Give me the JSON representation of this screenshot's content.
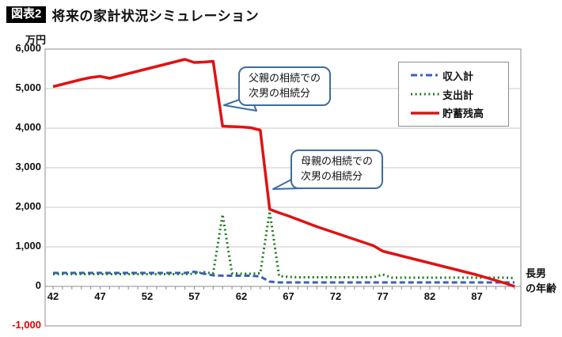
{
  "header": {
    "badge": "図表2",
    "title": "将来の家計状況シミュレーション"
  },
  "axes": {
    "y_unit": "万円",
    "x_axis_name": "長男\nの年齢"
  },
  "annotations": [
    {
      "line1": "父親の相続での",
      "line2": "次男の相続分"
    },
    {
      "line1": "母親の相続での",
      "line2": "次男の相続分"
    }
  ],
  "chart_data": {
    "type": "line",
    "title": "将来の家計状況シミュレーション",
    "xlabel": "長男の年齢",
    "ylabel": "万円",
    "ylim": [
      -1000,
      6000
    ],
    "y_tick_interval": 1000,
    "y_tick_labels": [
      "6,000",
      "5,000",
      "4,000",
      "3,000",
      "2,000",
      "1,000",
      "0",
      "-1,000"
    ],
    "x_tick_labels": [
      "42",
      "47",
      "52",
      "57",
      "62",
      "67",
      "72",
      "77",
      "82",
      "87"
    ],
    "grid": "horizontal",
    "legend_position": "top-right",
    "style": {
      "annotation_border": "#3E6C9E",
      "grid_color": "#C9C9C9",
      "axis_color": "#8C8C8C",
      "negative_tick_color": "#E00000"
    },
    "x": [
      42,
      43,
      44,
      45,
      46,
      47,
      48,
      49,
      50,
      51,
      52,
      53,
      54,
      55,
      56,
      57,
      58,
      59,
      60,
      61,
      62,
      63,
      64,
      65,
      66,
      67,
      68,
      69,
      70,
      71,
      72,
      73,
      74,
      75,
      76,
      77,
      78,
      79,
      80,
      81,
      82,
      83,
      84,
      85,
      86,
      87,
      88,
      89,
      90,
      91
    ],
    "series": [
      {
        "name": "収入計",
        "color": "#3B5FC0",
        "line_style": "dashed",
        "values": [
          340,
          340,
          340,
          340,
          340,
          340,
          340,
          340,
          340,
          340,
          340,
          340,
          340,
          340,
          340,
          370,
          320,
          280,
          270,
          270,
          270,
          270,
          250,
          120,
          100,
          100,
          100,
          100,
          100,
          100,
          100,
          100,
          100,
          100,
          100,
          100,
          100,
          100,
          100,
          100,
          100,
          100,
          100,
          100,
          100,
          100,
          100,
          100,
          100,
          100
        ]
      },
      {
        "name": "支出計",
        "color": "#1E7B1E",
        "line_style": "dotted",
        "values": [
          310,
          310,
          310,
          310,
          310,
          310,
          310,
          310,
          310,
          310,
          310,
          310,
          310,
          310,
          310,
          320,
          360,
          330,
          1820,
          330,
          320,
          320,
          330,
          1900,
          260,
          240,
          230,
          230,
          230,
          230,
          230,
          230,
          230,
          230,
          230,
          300,
          220,
          220,
          220,
          220,
          220,
          220,
          220,
          220,
          220,
          220,
          220,
          220,
          220,
          210
        ]
      },
      {
        "name": "貯蓄残高",
        "color": "#E01212",
        "line_style": "solid",
        "values": [
          5050,
          5110,
          5170,
          5230,
          5280,
          5310,
          5260,
          5320,
          5380,
          5440,
          5500,
          5560,
          5620,
          5680,
          5740,
          5660,
          5670,
          5690,
          4050,
          4040,
          4030,
          4010,
          3950,
          1950,
          1860,
          1780,
          1690,
          1600,
          1510,
          1430,
          1350,
          1270,
          1190,
          1110,
          1030,
          890,
          830,
          770,
          710,
          650,
          590,
          530,
          470,
          410,
          350,
          290,
          220,
          150,
          80,
          0
        ]
      }
    ]
  }
}
